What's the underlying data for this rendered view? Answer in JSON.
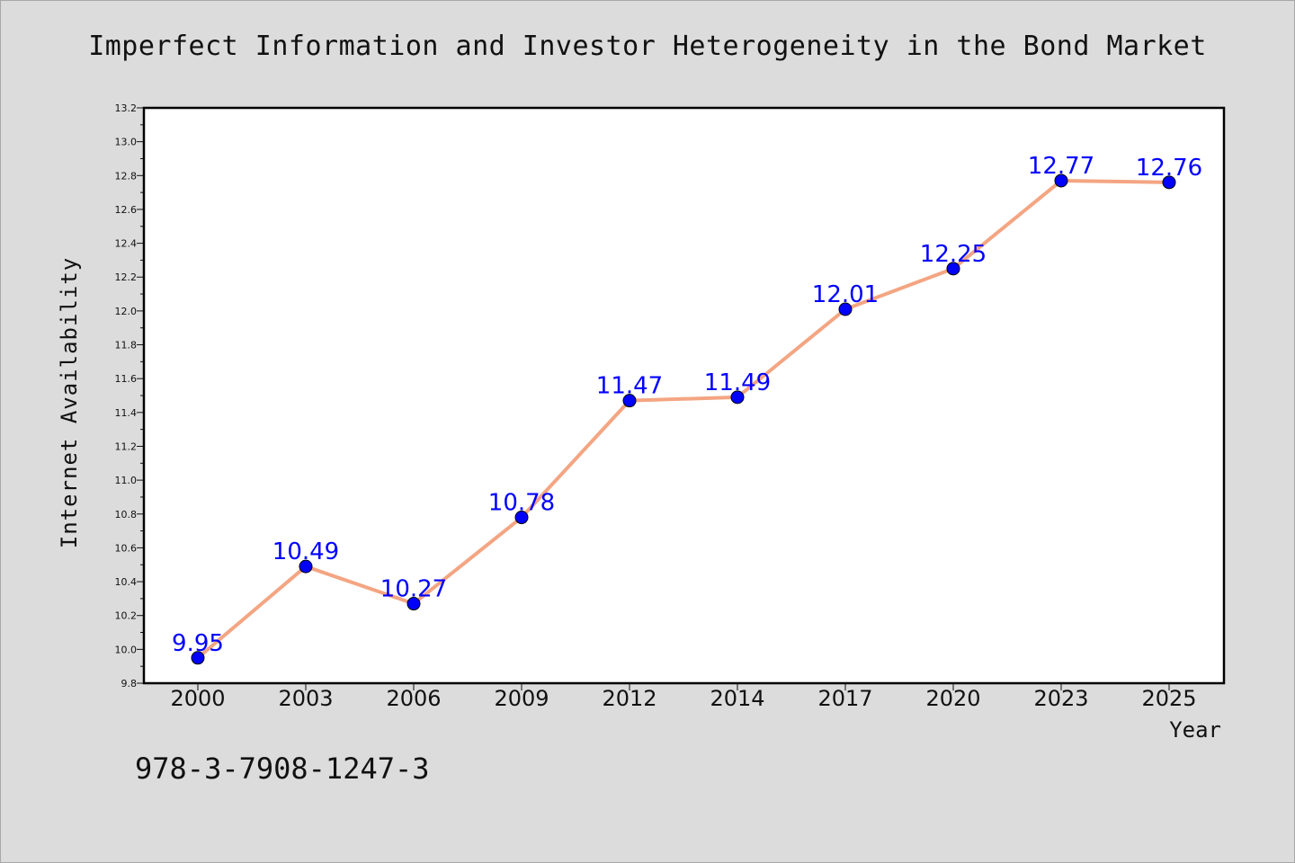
{
  "chart_data": {
    "type": "line",
    "title": "Imperfect Information and Investor Heterogeneity in the Bond Market",
    "xlabel": "Year",
    "ylabel": "Internet Availability",
    "categories": [
      "2000",
      "2003",
      "2006",
      "2009",
      "2012",
      "2014",
      "2017",
      "2020",
      "2023",
      "2025"
    ],
    "values": [
      9.95,
      10.49,
      10.27,
      10.78,
      11.47,
      11.49,
      12.01,
      12.25,
      12.77,
      12.76
    ],
    "data_labels": [
      "9.95",
      "10.49",
      "10.27",
      "10.78",
      "11.47",
      "11.49",
      "12.01",
      "12.25",
      "12.77",
      "12.76"
    ],
    "ylim": [
      9.8,
      13.2
    ],
    "yticks": [
      "9.8",
      "10.0",
      "10.2",
      "10.4",
      "10.6",
      "10.8",
      "11.0",
      "11.2",
      "11.4",
      "11.6",
      "11.8",
      "12.0",
      "12.2",
      "12.4",
      "12.6",
      "12.8",
      "13.0",
      "13.2"
    ],
    "grid": false,
    "line_color": "#f4a582",
    "marker_color": "#0000ff",
    "label_color": "#0000ff"
  },
  "footer": {
    "isbn": "978-3-7908-1247-3"
  }
}
